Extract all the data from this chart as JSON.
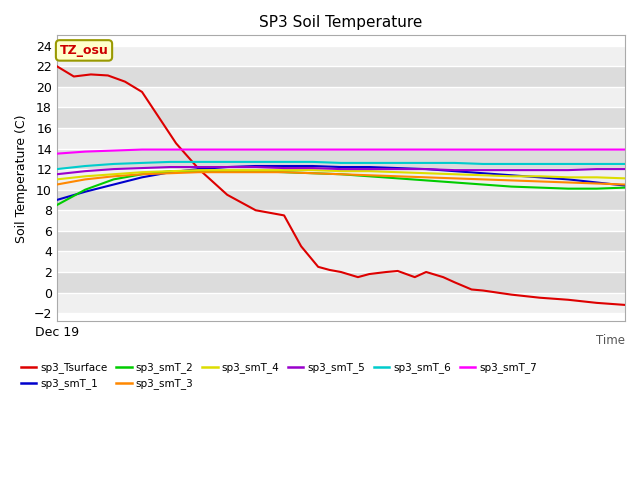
{
  "title": "SP3 Soil Temperature",
  "ylabel": "Soil Temperature (C)",
  "xlabel_right": "Time",
  "xlabel_bottom_left": "Dec 19",
  "annotation_text": "TZ_osu",
  "annotation_color": "#cc0000",
  "annotation_bg": "#ffffcc",
  "annotation_border": "#999900",
  "ylim": [
    -2.8,
    25.0
  ],
  "yticks": [
    -2,
    0,
    2,
    4,
    6,
    8,
    10,
    12,
    14,
    16,
    18,
    20,
    22,
    24
  ],
  "bg_light": "#f0f0f0",
  "bg_dark": "#dcdcdc",
  "grid_color": "#ffffff",
  "series_order": [
    "sp3_Tsurface",
    "sp3_smT_1",
    "sp3_smT_2",
    "sp3_smT_3",
    "sp3_smT_4",
    "sp3_smT_5",
    "sp3_smT_6",
    "sp3_smT_7"
  ],
  "series": {
    "sp3_Tsurface": {
      "color": "#dd0000",
      "x": [
        0,
        3,
        6,
        9,
        12,
        15,
        18,
        21,
        25,
        30,
        35,
        40,
        43,
        46,
        48,
        50,
        53,
        55,
        58,
        60,
        63,
        65,
        68,
        70,
        73,
        75,
        80,
        85,
        90,
        95,
        100
      ],
      "y": [
        22.0,
        21.0,
        21.2,
        21.1,
        20.5,
        19.5,
        17.0,
        14.5,
        12.0,
        9.5,
        8.0,
        7.5,
        4.5,
        2.5,
        2.2,
        2.0,
        1.5,
        1.8,
        2.0,
        2.1,
        1.5,
        2.0,
        1.5,
        1.0,
        0.3,
        0.2,
        -0.2,
        -0.5,
        -0.7,
        -1.0,
        -1.2
      ]
    },
    "sp3_smT_1": {
      "color": "#0000cc",
      "x": [
        0,
        5,
        10,
        15,
        20,
        25,
        30,
        35,
        40,
        45,
        50,
        55,
        60,
        65,
        70,
        75,
        80,
        85,
        90,
        95,
        100
      ],
      "y": [
        9.0,
        9.8,
        10.5,
        11.2,
        11.7,
        12.0,
        12.2,
        12.3,
        12.3,
        12.3,
        12.2,
        12.2,
        12.1,
        12.0,
        11.8,
        11.6,
        11.4,
        11.2,
        11.0,
        10.7,
        10.4
      ]
    },
    "sp3_smT_2": {
      "color": "#00cc00",
      "x": [
        0,
        5,
        10,
        15,
        20,
        25,
        30,
        35,
        40,
        45,
        50,
        55,
        60,
        65,
        70,
        75,
        80,
        85,
        90,
        95,
        100
      ],
      "y": [
        8.5,
        10.0,
        11.0,
        11.5,
        11.8,
        11.8,
        11.8,
        11.8,
        11.7,
        11.6,
        11.5,
        11.3,
        11.1,
        10.9,
        10.7,
        10.5,
        10.3,
        10.2,
        10.1,
        10.1,
        10.2
      ]
    },
    "sp3_smT_3": {
      "color": "#ff8800",
      "x": [
        0,
        5,
        10,
        15,
        20,
        25,
        30,
        35,
        40,
        45,
        50,
        55,
        60,
        65,
        70,
        75,
        80,
        85,
        90,
        95,
        100
      ],
      "y": [
        10.5,
        11.0,
        11.3,
        11.5,
        11.6,
        11.7,
        11.7,
        11.7,
        11.7,
        11.6,
        11.5,
        11.4,
        11.3,
        11.2,
        11.1,
        11.0,
        10.9,
        10.8,
        10.7,
        10.6,
        10.5
      ]
    },
    "sp3_smT_4": {
      "color": "#dddd00",
      "x": [
        0,
        5,
        10,
        15,
        20,
        25,
        30,
        35,
        40,
        45,
        50,
        55,
        60,
        65,
        70,
        75,
        80,
        85,
        90,
        95,
        100
      ],
      "y": [
        11.0,
        11.3,
        11.5,
        11.7,
        11.8,
        11.9,
        11.9,
        11.9,
        11.9,
        11.9,
        11.8,
        11.8,
        11.7,
        11.6,
        11.5,
        11.4,
        11.3,
        11.3,
        11.2,
        11.2,
        11.1
      ]
    },
    "sp3_smT_5": {
      "color": "#9900cc",
      "x": [
        0,
        5,
        10,
        15,
        20,
        25,
        30,
        35,
        40,
        45,
        50,
        55,
        60,
        65,
        70,
        75,
        80,
        85,
        90,
        95,
        100
      ],
      "y": [
        11.5,
        11.8,
        12.0,
        12.1,
        12.2,
        12.2,
        12.2,
        12.2,
        12.1,
        12.1,
        12.0,
        12.0,
        12.0,
        12.0,
        11.9,
        11.9,
        11.9,
        11.9,
        11.9,
        12.0,
        12.0
      ]
    },
    "sp3_smT_6": {
      "color": "#00cccc",
      "x": [
        0,
        5,
        10,
        15,
        20,
        25,
        30,
        35,
        40,
        45,
        50,
        55,
        60,
        65,
        70,
        75,
        80,
        85,
        90,
        95,
        100
      ],
      "y": [
        12.0,
        12.3,
        12.5,
        12.6,
        12.7,
        12.7,
        12.7,
        12.7,
        12.7,
        12.7,
        12.6,
        12.6,
        12.6,
        12.6,
        12.6,
        12.5,
        12.5,
        12.5,
        12.5,
        12.5,
        12.5
      ]
    },
    "sp3_smT_7": {
      "color": "#ff00ff",
      "x": [
        0,
        5,
        10,
        15,
        20,
        25,
        30,
        35,
        40,
        45,
        50,
        55,
        60,
        65,
        70,
        75,
        80,
        85,
        90,
        95,
        100
      ],
      "y": [
        13.5,
        13.7,
        13.8,
        13.9,
        13.9,
        13.9,
        13.9,
        13.9,
        13.9,
        13.9,
        13.9,
        13.9,
        13.9,
        13.9,
        13.9,
        13.9,
        13.9,
        13.9,
        13.9,
        13.9,
        13.9
      ]
    }
  },
  "legend_row1": [
    "sp3_Tsurface",
    "sp3_smT_1",
    "sp3_smT_2",
    "sp3_smT_3",
    "sp3_smT_4",
    "sp3_smT_5"
  ],
  "legend_row2": [
    "sp3_smT_6",
    "sp3_smT_7"
  ]
}
